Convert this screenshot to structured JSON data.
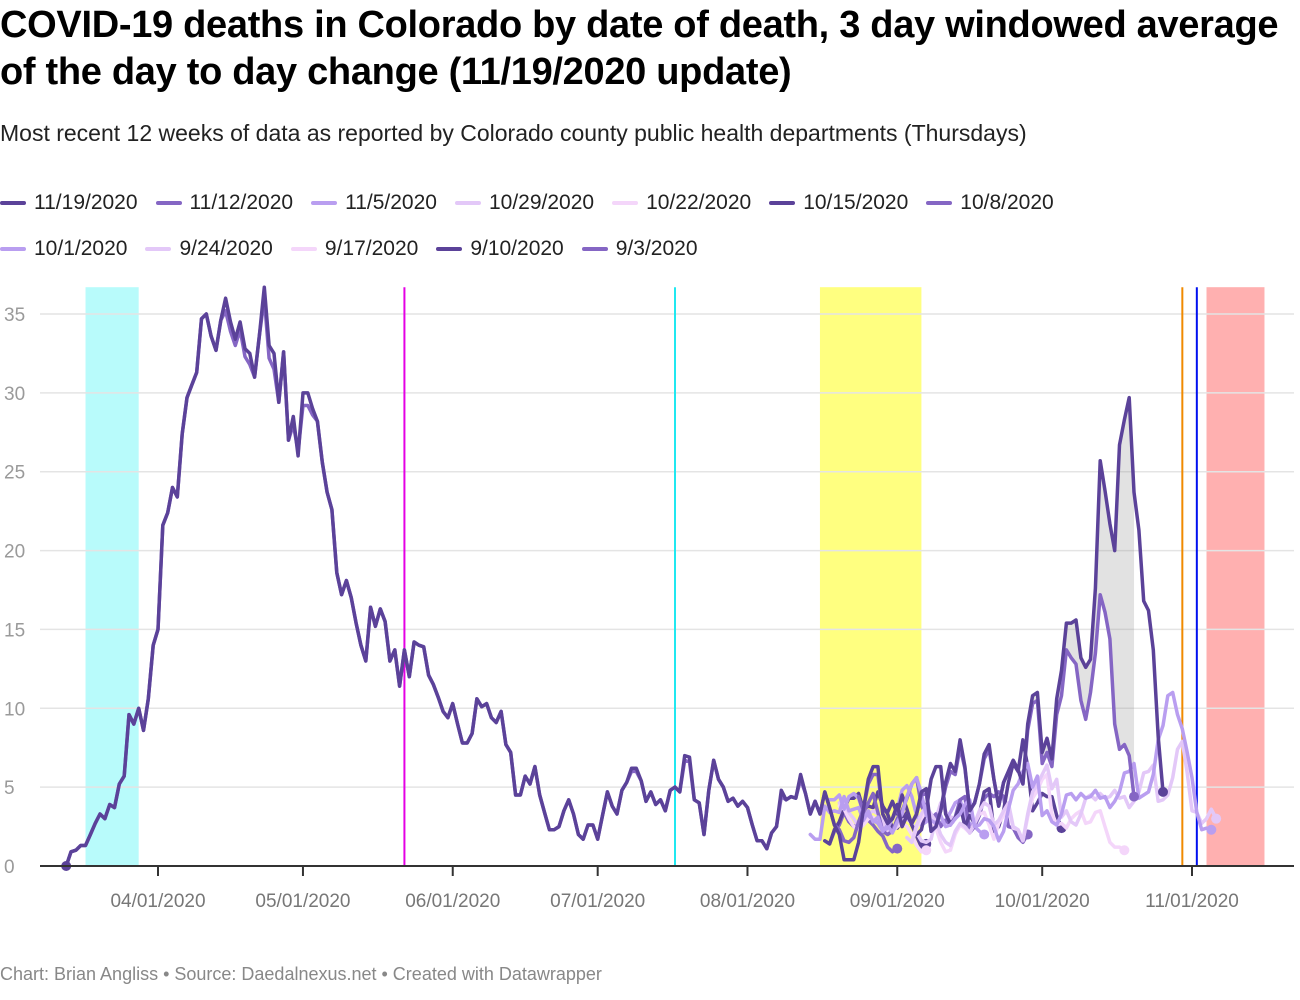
{
  "title": "COVID-19 deaths in Colorado by date of death, 3 day windowed average of the day to day change (11/19/2020 update)",
  "subtitle": "Most recent 12 weeks of data as reported by Colorado county public health departments (Thursdays)",
  "footer": "Chart: Brian Angliss • Source: Daedalnexus.net • Created with Datawrapper",
  "legend": [
    [
      {
        "label": "11/19/2020",
        "color": "#5b4299"
      },
      {
        "label": "11/12/2020",
        "color": "#8566c4"
      },
      {
        "label": "11/5/2020",
        "color": "#b99ef0"
      },
      {
        "label": "10/29/2020",
        "color": "#e3c8f8"
      },
      {
        "label": "10/22/2020",
        "color": "#f4d6fa"
      },
      {
        "label": "10/15/2020",
        "color": "#5b4299"
      },
      {
        "label": "10/8/2020",
        "color": "#8566c4"
      }
    ],
    [
      {
        "label": "10/1/2020",
        "color": "#b99ef0"
      },
      {
        "label": "9/24/2020",
        "color": "#e3c8f8"
      },
      {
        "label": "9/17/2020",
        "color": "#f4d6fa"
      },
      {
        "label": "9/10/2020",
        "color": "#5b4299"
      },
      {
        "label": "9/3/2020",
        "color": "#8566c4"
      }
    ]
  ],
  "chart_data": {
    "type": "line",
    "title": "COVID-19 deaths in Colorado by date of death, 3 day windowed average of the day to day change (11/19/2020 update)",
    "xlabel": "",
    "ylabel": "",
    "x_range": [
      "2020-03-13",
      "2020-11-18"
    ],
    "ylim": [
      0,
      36.7
    ],
    "y_ticks": [
      0,
      5,
      10,
      15,
      20,
      25,
      30,
      35
    ],
    "x_ticks": [
      {
        "date": "2020-04-01",
        "label": "04/01/2020"
      },
      {
        "date": "2020-05-01",
        "label": "05/01/2020"
      },
      {
        "date": "2020-06-01",
        "label": "06/01/2020"
      },
      {
        "date": "2020-07-01",
        "label": "07/01/2020"
      },
      {
        "date": "2020-08-01",
        "label": "08/01/2020"
      },
      {
        "date": "2020-09-01",
        "label": "09/01/2020"
      },
      {
        "date": "2020-10-01",
        "label": "10/01/2020"
      },
      {
        "date": "2020-11-01",
        "label": "11/01/2020"
      }
    ],
    "grid": true,
    "legend_position": "top",
    "ranges": [
      {
        "from": "2020-03-17",
        "to": "2020-03-28",
        "color": "#b8fbfb"
      },
      {
        "from": "2020-08-16",
        "to": "2020-09-06",
        "color": "#ffff80"
      },
      {
        "from": "2020-11-04",
        "to": "2020-11-16",
        "color": "#ffb0b0"
      }
    ],
    "vlines": [
      {
        "date": "2020-05-22",
        "color": "#e400e4"
      },
      {
        "date": "2020-07-17",
        "color": "#20e8f0"
      },
      {
        "date": "2020-10-30",
        "color": "#f08a00"
      },
      {
        "date": "2020-11-02",
        "color": "#0010f0"
      }
    ],
    "series": [
      {
        "name": "11/19/2020",
        "color": "#5b4299",
        "start": "2020-03-13",
        "values": [
          0,
          0.9,
          1,
          1.3,
          1.3,
          2,
          2.7,
          3.3,
          3,
          3.9,
          3.7,
          5.2,
          5.7,
          9.6,
          9,
          10,
          8.6,
          10.6,
          14,
          15,
          21.6,
          22.4,
          24,
          23.4,
          27.4,
          29.7,
          30.5,
          31.3,
          34.7,
          35,
          33.6,
          32.7,
          34.6,
          36,
          34.5,
          33.4,
          34.5,
          32.8,
          32.5,
          31,
          33.7,
          36.7,
          33,
          32.5,
          29.4,
          32.6,
          27,
          28.5,
          26,
          30,
          30,
          29,
          28.2,
          25.6,
          23.7,
          22.6,
          18.6,
          17.2,
          18.1,
          17,
          15.4,
          14,
          13,
          16.4,
          15.2,
          16.3,
          15.5,
          13,
          13.7,
          11.4,
          13.7,
          12,
          14.2,
          14,
          13.9,
          12.1,
          11.5,
          10.7,
          9.8,
          9.4,
          10.3,
          9,
          7.8,
          7.8,
          8.4,
          10.6,
          10.1,
          10.3,
          9.4,
          9.1,
          9.8,
          7.7,
          7.2,
          4.5,
          4.5,
          5.7,
          5.2,
          6.3,
          4.5,
          3.4,
          2.3,
          2.3,
          2.5,
          3.5,
          4.2,
          3.3,
          2,
          1.7,
          2.6,
          2.6,
          1.7,
          3.2,
          4.7,
          3.8,
          3.3,
          4.8,
          5.3,
          6.2,
          6.2,
          5.4,
          4.1,
          4.7,
          3.9,
          4.2,
          3.5,
          4.8,
          5,
          4.7,
          7,
          6.9,
          4.2,
          4,
          2,
          4.8,
          6.7,
          5.5,
          5,
          4.1,
          4.3,
          3.8,
          4.1,
          3.7,
          2.6,
          1.6,
          1.6,
          1.1,
          2.1,
          2.5,
          4.8,
          4.2,
          4.4,
          4.3,
          5.8,
          4.6,
          3.3,
          4.1,
          3.3,
          4.7,
          3.7,
          2.6,
          2,
          0.4,
          0.4,
          0.4,
          1.5,
          3.6,
          5.5,
          6.3,
          6.3,
          3.3,
          2.7,
          3,
          3.9,
          2.5,
          3.2,
          2.7,
          3.3,
          4.7,
          4.9,
          2.2,
          2.5,
          3.5,
          5.3,
          6.5,
          6,
          8,
          6.3,
          3.5,
          4,
          5.2,
          7.1,
          7.7,
          5.5,
          3.8,
          5.3,
          6,
          6.7,
          6.1,
          5.2,
          9,
          10.8,
          11,
          7.2,
          8.1,
          6.8,
          10.6,
          12.4,
          15.4,
          15.4,
          15.6,
          13.2,
          12.6,
          13.1,
          17.6,
          25.7,
          23.8,
          21.7,
          20,
          26.7,
          28.3,
          29.7,
          23.7,
          21.3,
          16.8,
          16.2,
          13.7,
          8.2,
          4.7
        ],
        "end_marker": true
      },
      {
        "name": "11/12/2020",
        "color": "#8566c4",
        "start": "2020-03-13",
        "values": [
          0,
          0.9,
          1,
          1.3,
          1.3,
          2,
          2.7,
          3.3,
          3,
          3.9,
          3.7,
          5.2,
          5.7,
          9.6,
          9,
          10,
          8.6,
          10.6,
          14,
          15,
          21.6,
          22.4,
          24,
          23.4,
          27.4,
          29.7,
          30.5,
          31.3,
          34.7,
          35,
          33.6,
          32.7,
          34.6,
          35.2,
          33.9,
          33,
          34,
          32.3,
          31.8,
          31,
          33.7,
          36,
          32.2,
          31.5,
          29.4,
          32.6,
          27,
          28,
          26.3,
          29.2,
          29.2,
          28.6,
          28.2,
          25.6,
          23.7,
          22.6,
          18.6,
          17.2,
          18.1,
          17,
          15.4,
          14,
          13,
          16.4,
          15.2,
          16.3,
          15.5,
          13,
          13.7,
          11.4,
          13.7,
          12,
          14.2,
          14,
          13.9,
          12.1,
          11.5,
          10.7,
          9.8,
          9.4,
          10.3,
          9,
          7.8,
          7.8,
          8.4,
          10.6,
          10.1,
          10.3,
          9.4,
          9.1,
          9.8,
          7.7,
          7.2,
          4.5,
          4.5,
          5.7,
          5.2,
          6.3,
          4.5,
          3.4,
          2.3,
          2.3,
          2.5,
          3.5,
          4.2,
          3.3,
          2,
          1.7,
          2.6,
          2.6,
          1.7,
          3.2,
          4.7,
          3.8,
          3.3,
          4.8,
          5.3,
          6,
          6,
          5.4,
          4.1,
          4.7,
          3.9,
          4.2,
          3.5,
          4.8,
          5,
          4.7,
          6.7,
          6.6,
          4.2,
          4,
          2,
          4.8,
          6.7,
          5.5,
          5,
          4.1,
          4.3,
          3.8,
          4.1,
          3.7,
          2.6,
          1.6,
          1.6,
          1.1,
          2.1,
          2.5,
          4.4,
          4.2,
          4.4,
          4.3,
          5.5,
          4.6,
          3.3,
          4.1,
          3.3,
          4.7,
          3.7,
          2.6,
          2.3,
          1.6,
          1.5,
          1.8,
          2.8,
          3.6,
          5.2,
          5.8,
          5.8,
          3.3,
          2.7,
          3,
          3.7,
          2.5,
          3.2,
          2.7,
          3.3,
          4.5,
          4.6,
          2.2,
          2.5,
          3.5,
          5,
          6,
          5.8,
          7.5,
          6.2,
          3.5,
          4,
          5.2,
          6.8,
          7.4,
          5.5,
          3.8,
          5.3,
          6,
          6.7,
          6.1,
          5.2,
          8.6,
          10.3,
          10.5,
          6.5,
          7.2,
          6.3,
          9.6,
          10.8,
          13.7,
          13.2,
          12.8,
          10.5,
          9.3,
          11,
          13.5,
          17.2,
          16.1,
          14.4,
          9,
          7.4,
          7.7,
          7,
          4.4
        ],
        "end_marker": true
      },
      {
        "name": "11/5/2020",
        "color": "#b99ef0",
        "start": "2020-08-14",
        "values": [
          2,
          1.7,
          1.7,
          3.8,
          3.4,
          3.5,
          3.4,
          4.4,
          3.5,
          3.6,
          3.7,
          2.9,
          3.5,
          2.8,
          3.1,
          2.2,
          2.6,
          2.1,
          2.8,
          3.3,
          4.4,
          5.2,
          5.6,
          4.6,
          3.2,
          2.9,
          2.7,
          3.2,
          2.5,
          2.6,
          3,
          3.3,
          3.9,
          4.2,
          2.5,
          2.6,
          3,
          2.9,
          2.5,
          1.6,
          2.2,
          3.6,
          4.8,
          5.2,
          6,
          6.5,
          5,
          5.7,
          3.2,
          3.5,
          2.8,
          2.6,
          3.3,
          4.5,
          4.6,
          4.2,
          4.6,
          4.3,
          4.4,
          4.8,
          4.3,
          4.4,
          3.7,
          4.1,
          4.7,
          5.9,
          6,
          6.5,
          4.3,
          4.5,
          4.7,
          5.8,
          8,
          8.9,
          10.8,
          11,
          9.6,
          8.7,
          7.2,
          5.6,
          3.4,
          2.3,
          2.4,
          2.3
        ],
        "end_marker": true
      },
      {
        "name": "10/29/2020",
        "color": "#e3c8f8",
        "start": "2020-09-03",
        "values": [
          1.8,
          1.5,
          2.6,
          3.3,
          3.8,
          3.3,
          2.8,
          2,
          1.5,
          1.3,
          2.2,
          2.7,
          2.5,
          2.1,
          2.7,
          3.5,
          4,
          3.8,
          2.6,
          2.9,
          3.5,
          4,
          2.5,
          2.3,
          1.6,
          3.3,
          4.7,
          5.2,
          5.8,
          6.4,
          4.9,
          5.5,
          3.1,
          3.5,
          2.8,
          2.6,
          3.3,
          4.3,
          4.5,
          4.2,
          4.6,
          4.3,
          4.4,
          4.8,
          4.3,
          4.4,
          3.7,
          4.1,
          4.7,
          5.9,
          6,
          6.4,
          4.1,
          4.2,
          4.5,
          5.6,
          7.4,
          7.9,
          5.9,
          3.5,
          3.4,
          2.7,
          3,
          3.6,
          3
        ],
        "end_marker": true
      },
      {
        "name": "10/22/2020",
        "color": "#f4d6fa",
        "start": "2020-09-03",
        "values": [
          1.8,
          1.5,
          2.4,
          3,
          3.5,
          3,
          2.4,
          1.5,
          0.9,
          1,
          2,
          2.6,
          2.4,
          2.1,
          2.7,
          3.3,
          3.4,
          2.6,
          1.7,
          2.7,
          3.2,
          3.7,
          2.4,
          2.3,
          1.6,
          3.1,
          4.3,
          4.8,
          5.5,
          5.8,
          3.3,
          2.6,
          2.7,
          2.4,
          3,
          3.3,
          3.5,
          2.7,
          2.8,
          3.4,
          3.5,
          2.5,
          1.5,
          1.2,
          1.2,
          1
        ],
        "end_marker": true
      },
      {
        "name": "10/15/2020",
        "color": "#5b4299",
        "start": "2020-08-29",
        "values": [
          3.7,
          3.4,
          4.1,
          3.3,
          4.5,
          3.6,
          2.6,
          2,
          2.3,
          3.6,
          5.5,
          6.3,
          6.3,
          3.3,
          2.7,
          3,
          3.9,
          2.5,
          3.2,
          2.7,
          3.3,
          4.7,
          4.9,
          2.2,
          2.5,
          3.5,
          5.3,
          6.5,
          6,
          8,
          6.3,
          3.5,
          4,
          4.6,
          4.4,
          4.4,
          3.2,
          2.4
        ],
        "end_marker": true
      },
      {
        "name": "10/8/2020",
        "color": "#8566c4",
        "start": "2020-08-24",
        "values": [
          4.4,
          3.4,
          4,
          4.6,
          3.4,
          2.2,
          2,
          2.2,
          3,
          3.5,
          4.3,
          5.2,
          5.6,
          3.8,
          3.3,
          3,
          3.3,
          2.5,
          2.9,
          2.6,
          3.1,
          4.2,
          4.4,
          2.1,
          2.5,
          3.2,
          4.3,
          4.6,
          4.4,
          4.7,
          4.4,
          2.5,
          2.4,
          1.8,
          1.5,
          2
        ],
        "end_marker": true
      },
      {
        "name": "10/1/2020",
        "color": "#b99ef0",
        "start": "2020-08-18",
        "values": [
          4.2,
          4.2,
          4.5,
          3.6,
          4.4,
          4.6,
          4.3,
          3.4,
          3.2,
          2.9,
          2.7,
          2.2,
          2.4,
          3,
          3.6,
          4.8,
          5.1,
          4.4,
          3.2,
          2.6,
          2.8,
          3.3,
          2.5,
          2.7,
          2.9,
          3.4,
          4,
          4.2,
          3.1,
          2.7,
          2.5,
          2.2,
          2
        ],
        "end_marker": true
      },
      {
        "name": "9/24/2020",
        "color": "#e3c8f8",
        "start": "2020-08-20",
        "values": [
          4,
          4,
          3.4,
          3,
          2.5,
          2.9,
          3.3,
          3.5,
          3.3,
          2.8,
          2.3,
          2.2,
          2.6,
          2.9,
          3,
          2.7,
          2.1,
          1.6,
          1.5,
          1.7,
          3,
          4,
          3.5,
          2.9
        ],
        "end_marker": true
      },
      {
        "name": "9/17/2020",
        "color": "#f4d6fa",
        "start": "2020-08-20",
        "values": [
          3.8,
          3.6,
          3,
          2.5,
          2.3,
          2.6,
          3,
          3.1,
          2.8,
          2.4,
          2.1,
          2.2,
          2.5,
          2.7,
          2.5,
          2,
          1.3,
          0.9,
          1
        ],
        "end_marker": true
      },
      {
        "name": "9/10/2020",
        "color": "#5b4299",
        "start": "2020-08-17",
        "values": [
          1.6,
          1.4,
          2.3,
          2.8,
          3.6,
          4.3,
          4.3,
          4.6,
          3.6,
          3.8,
          3.7,
          4.7,
          3.8,
          3.3,
          2.4,
          2.4,
          2.9,
          3.4,
          2.6,
          1.9,
          1.2,
          1.4
        ],
        "end_marker": true
      },
      {
        "name": "9/3/2020",
        "color": "#8566c4",
        "start": "2020-08-17",
        "values": [
          1.6,
          1.4,
          2.2,
          2.6,
          3.4,
          2.8,
          2.5,
          2.7,
          3.3,
          2.9,
          2.6,
          2.2,
          1.9,
          1.2,
          0.9,
          1.1
        ],
        "end_marker": true
      }
    ]
  }
}
